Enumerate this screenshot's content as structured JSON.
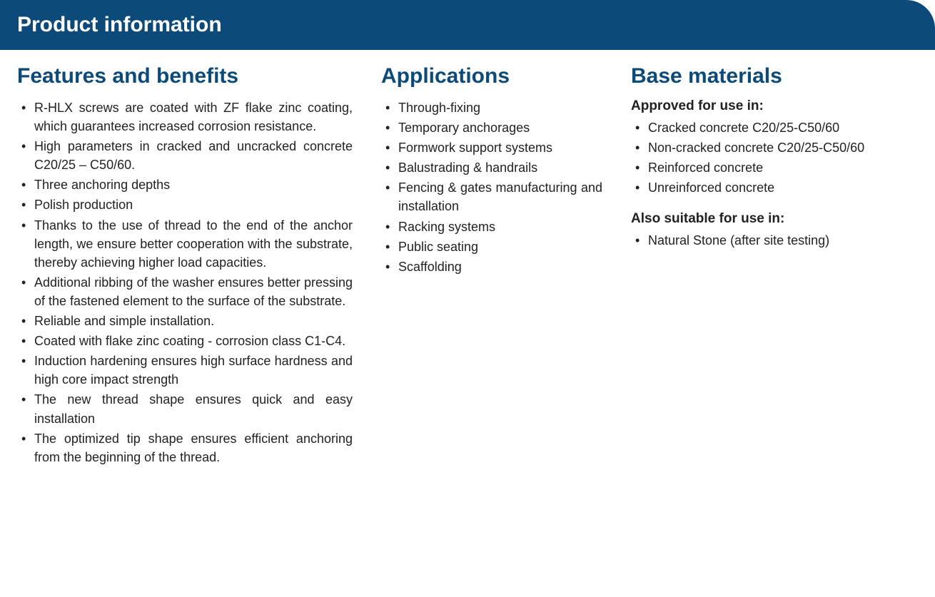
{
  "header": {
    "title": "Product information",
    "background_color": "#0c4a7a",
    "text_color": "#ffffff"
  },
  "sections": {
    "features": {
      "title": "Features and benefits",
      "items": [
        "R-HLX screws are coated with ZF flake zinc coating, which guarantees increased corro­sion resistance.",
        "High parameters in cracked and uncracked concrete C20/25 – C50/60.",
        "Three anchoring depths",
        "Polish production",
        "Thanks to the use of thread to the end of the anchor length, we ensure better cooperation with the substrate, thereby achieving higher load capacities.",
        "Additional ribbing of the washer ensures better pressing of the fastened element to the surface of the substrate.",
        "Reliable and simple installation.",
        "Coated with flake zinc coating - corrosion class C1-C4.",
        "Induction hardening ensures high surface hardness and high core impact strength",
        "The new thread shape ensures quick and easy installation",
        "The optimized tip shape ensures efficient an­choring from the beginning of the thread."
      ]
    },
    "applications": {
      "title": "Applications",
      "items": [
        "Through-fixing",
        "Temporary anchorages",
        "Formwork support systems",
        "Balustrading & handrails",
        "Fencing & gates manufactu­ring and installation",
        "Racking systems",
        "Public seating",
        "Scaffolding"
      ]
    },
    "base_materials": {
      "title": "Base materials",
      "approved_label": "Approved for use in:",
      "approved_items": [
        "Cracked concrete C20/25-C50/60",
        "Non-cracked concrete C20/25-C50/60",
        "Reinforced concrete",
        "Unreinforced concrete"
      ],
      "suitable_label": "Also suitable for use in:",
      "suitable_items": [
        "Natural Stone (after site te­sting)"
      ]
    }
  },
  "colors": {
    "heading_color": "#0c4a7a",
    "text_color": "#222222",
    "background": "#ffffff"
  }
}
